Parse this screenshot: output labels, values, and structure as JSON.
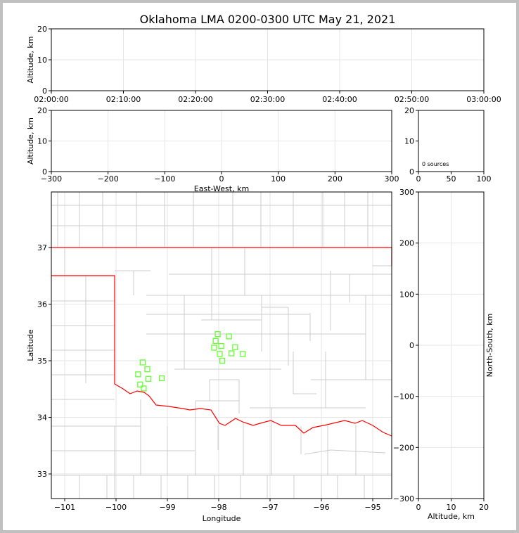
{
  "chart_data": [
    {
      "id": "time-height",
      "type": "scatter",
      "title": "Oklahoma LMA 0200-0300 UTC May 21, 2021",
      "ylabel": "Altitude, km",
      "xlim": [
        "02:00:00",
        "03:00:00"
      ],
      "ylim": [
        0,
        20
      ],
      "xticks": [
        "02:00:00",
        "02:10:00",
        "02:20:00",
        "02:30:00",
        "02:40:00",
        "02:50:00",
        "03:00:00"
      ],
      "yticks": [
        "0",
        "10",
        "20"
      ],
      "grid": true,
      "points": []
    },
    {
      "id": "ew-alt",
      "type": "scatter",
      "xlabel": "East-West, km",
      "ylabel": "Altitude, km",
      "xlim": [
        -300,
        300
      ],
      "ylim": [
        0,
        20
      ],
      "xticks": [
        "−300",
        "−200",
        "−100",
        "0",
        "100",
        "200",
        "300"
      ],
      "yticks": [
        "0",
        "10",
        "20"
      ],
      "grid": true,
      "points": []
    },
    {
      "id": "histogram",
      "type": "bar",
      "xlim": [
        0,
        100
      ],
      "ylim": [
        0,
        20
      ],
      "xticks": [
        "0",
        "50",
        "100"
      ],
      "yticks": [
        "0",
        "10",
        "20"
      ],
      "annotation": "0 sources",
      "values": []
    },
    {
      "id": "plan-view",
      "type": "scatter",
      "xlabel": "Longitude",
      "ylabel": "Latitude",
      "xlim": [
        -101.26,
        -94.63
      ],
      "ylim": [
        32.57,
        37.98
      ],
      "xticks": [
        "−101",
        "−100",
        "−99",
        "−98",
        "−97",
        "−96",
        "−95"
      ],
      "yticks": [
        "33",
        "34",
        "35",
        "36",
        "37"
      ],
      "grid": true,
      "marker_color": "#66ff33",
      "border_color": "#ff0000",
      "county_color": "#cccccc",
      "points": [
        [
          -98.02,
          35.47
        ],
        [
          -97.8,
          35.43
        ],
        [
          -98.06,
          35.35
        ],
        [
          -98.09,
          35.23
        ],
        [
          -97.95,
          35.26
        ],
        [
          -97.68,
          35.24
        ],
        [
          -97.98,
          35.12
        ],
        [
          -97.75,
          35.13
        ],
        [
          -97.53,
          35.12
        ],
        [
          -97.93,
          35.0
        ],
        [
          -99.48,
          34.97
        ],
        [
          -99.39,
          34.85
        ],
        [
          -99.57,
          34.76
        ],
        [
          -99.37,
          34.68
        ],
        [
          -99.11,
          34.69
        ],
        [
          -99.53,
          34.58
        ],
        [
          -99.46,
          34.51
        ]
      ]
    },
    {
      "id": "alt-ns",
      "type": "scatter",
      "xlabel": "Altitude, km",
      "ylabel": "North-South, km",
      "xlim": [
        0,
        20
      ],
      "ylim": [
        -300,
        300
      ],
      "xticks": [
        "0",
        "10",
        "20"
      ],
      "yticks": [
        "−300",
        "−200",
        "−100",
        "0",
        "100",
        "200",
        "300"
      ],
      "grid": true,
      "points": []
    }
  ]
}
